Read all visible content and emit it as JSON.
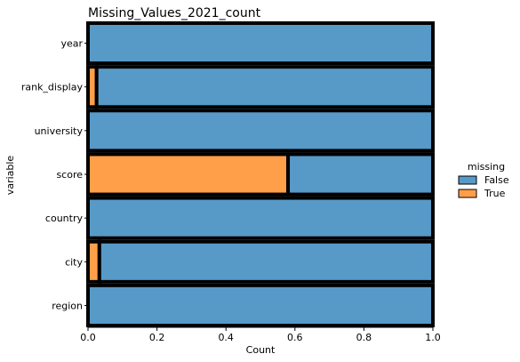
{
  "chart_data": {
    "type": "bar",
    "orientation": "horizontal",
    "stacked": "fill",
    "title": "Missing_Values_2021_count",
    "xlabel": "Count",
    "ylabel": "variable",
    "xlim": [
      0,
      1
    ],
    "xticks": [
      "0.0",
      "0.2",
      "0.4",
      "0.6",
      "0.8",
      "1.0"
    ],
    "categories": [
      "year",
      "rank_display",
      "university",
      "score",
      "country",
      "city",
      "region"
    ],
    "series": [
      {
        "name": "False",
        "color": "#5799c7",
        "values": [
          1.0,
          0.975,
          1.0,
          0.42,
          1.0,
          0.967,
          1.0
        ]
      },
      {
        "name": "True",
        "color": "#ff9f4a",
        "values": [
          0.0,
          0.025,
          0.0,
          0.58,
          0.0,
          0.033,
          0.0
        ]
      }
    ],
    "legend": {
      "title": "missing",
      "placement": "right"
    },
    "grid": false
  }
}
